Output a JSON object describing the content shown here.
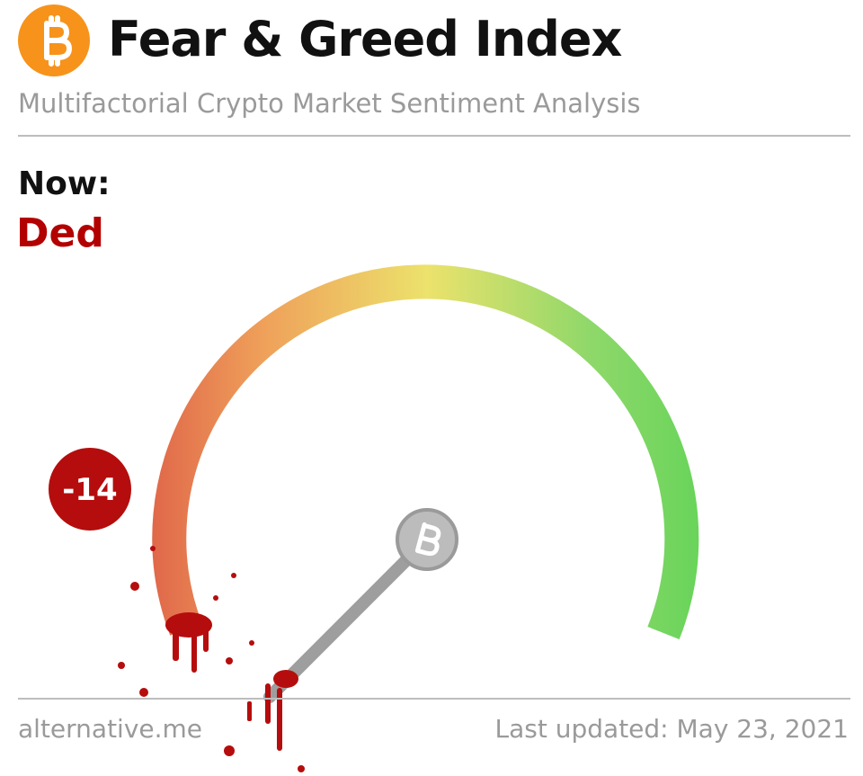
{
  "header": {
    "title": "Fear & Greed Index",
    "subtitle": "Multifactorial Crypto Market Sentiment Analysis"
  },
  "now": {
    "label": "Now:",
    "status": "Ded",
    "value": -14
  },
  "footer": {
    "source": "alternative.me",
    "last_updated": "Last updated: May 23, 2021"
  }
}
